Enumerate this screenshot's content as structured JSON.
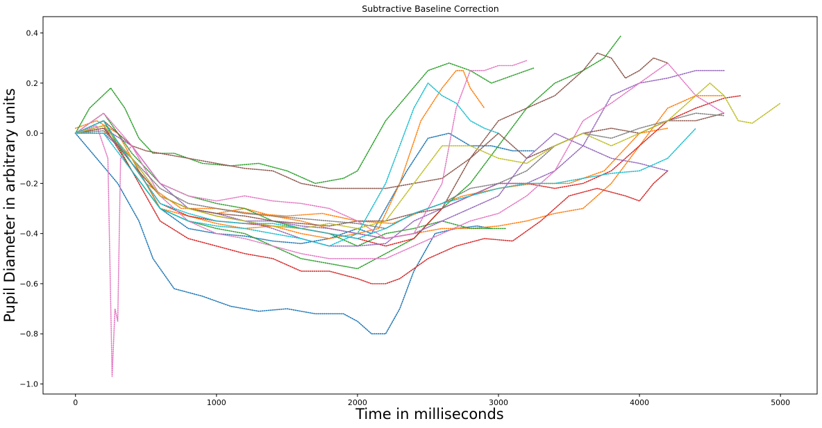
{
  "chart_data": {
    "type": "line",
    "title": "Subtractive Baseline Correction",
    "xlabel": "Time in milliseconds",
    "ylabel": "Pupil Diameter in arbitrary units",
    "xlim": [
      -230,
      5260
    ],
    "ylim": [
      -1.04,
      0.465
    ],
    "xticks": [
      0,
      1000,
      2000,
      3000,
      4000,
      5000
    ],
    "yticks": [
      -1.0,
      -0.8,
      -0.6,
      -0.4,
      -0.2,
      0.0,
      0.2,
      0.4
    ],
    "xtick_labels": [
      "0",
      "1000",
      "2000",
      "3000",
      "4000",
      "5000"
    ],
    "ytick_labels": [
      "−1.0",
      "−0.8",
      "−0.6",
      "−0.4",
      "−0.2",
      "0.0",
      "0.2",
      "0.4"
    ],
    "grid": false,
    "legend": "none",
    "line_style": "dotted",
    "series": [
      {
        "color": "#1f77b4",
        "x": [
          0,
          150,
          300,
          450,
          550,
          700,
          900,
          1100,
          1300,
          1500,
          1700,
          1900,
          2000,
          2100,
          2200,
          2300,
          2400,
          2550,
          2700,
          2850,
          2950
        ],
        "y": [
          0,
          -0.1,
          -0.2,
          -0.35,
          -0.5,
          -0.62,
          -0.65,
          -0.69,
          -0.71,
          -0.7,
          -0.72,
          -0.72,
          -0.75,
          -0.8,
          -0.8,
          -0.7,
          -0.55,
          -0.4,
          -0.38,
          -0.37,
          -0.38
        ]
      },
      {
        "color": "#1f77b4",
        "x": [
          0,
          200,
          400,
          600,
          800,
          1000,
          1200,
          1400,
          1600,
          1800,
          2000,
          2100,
          2200,
          2350,
          2500,
          2650,
          2800,
          2950,
          3100,
          3250
        ],
        "y": [
          0,
          0.03,
          -0.1,
          -0.3,
          -0.38,
          -0.4,
          -0.41,
          -0.43,
          -0.44,
          -0.42,
          -0.38,
          -0.4,
          -0.3,
          -0.15,
          -0.02,
          0.0,
          -0.05,
          -0.05,
          -0.07,
          -0.07
        ]
      },
      {
        "color": "#ff7f0e",
        "x": [
          0,
          150,
          300,
          450,
          600,
          800,
          1000,
          1200,
          1400,
          1600,
          1800,
          2000,
          2150,
          2300,
          2450,
          2600,
          2700,
          2750,
          2800,
          2900
        ],
        "y": [
          0.02,
          0.05,
          0.0,
          -0.15,
          -0.3,
          -0.33,
          -0.36,
          -0.38,
          -0.37,
          -0.4,
          -0.42,
          -0.4,
          -0.38,
          -0.2,
          0.05,
          0.18,
          0.25,
          0.25,
          0.18,
          0.1
        ]
      },
      {
        "color": "#ff7f0e",
        "x": [
          0,
          200,
          400,
          600,
          800,
          1000,
          1200,
          1400,
          1600,
          1800,
          2000,
          2200,
          2400,
          2600,
          2800,
          3000,
          3200,
          3400,
          3600,
          3800,
          4000,
          4200,
          4400,
          4600
        ],
        "y": [
          0,
          0.02,
          -0.12,
          -0.25,
          -0.3,
          -0.32,
          -0.3,
          -0.33,
          -0.35,
          -0.38,
          -0.4,
          -0.42,
          -0.4,
          -0.38,
          -0.38,
          -0.37,
          -0.35,
          -0.32,
          -0.3,
          -0.2,
          -0.05,
          0.1,
          0.15,
          0.15
        ]
      },
      {
        "color": "#ff7f0e",
        "x": [
          0,
          250,
          500,
          750,
          1000,
          1250,
          1500,
          1750,
          2000,
          2250,
          2500,
          2750,
          3000,
          3250,
          3500,
          3750,
          4000,
          4200
        ],
        "y": [
          0,
          0.0,
          -0.2,
          -0.3,
          -0.3,
          -0.32,
          -0.33,
          -0.32,
          -0.35,
          -0.36,
          -0.3,
          -0.25,
          -0.22,
          -0.2,
          -0.2,
          -0.15,
          0.0,
          0.02
        ]
      },
      {
        "color": "#2ca02c",
        "x": [
          0,
          100,
          250,
          350,
          450,
          550,
          700,
          900,
          1100,
          1300,
          1500,
          1700,
          1900,
          2000,
          2100,
          2200,
          2350,
          2500,
          2650,
          2800,
          2950,
          3100,
          3250
        ],
        "y": [
          0,
          0.1,
          0.18,
          0.1,
          -0.02,
          -0.08,
          -0.08,
          -0.12,
          -0.13,
          -0.12,
          -0.15,
          -0.2,
          -0.18,
          -0.15,
          -0.05,
          0.05,
          0.15,
          0.25,
          0.28,
          0.25,
          0.2,
          0.23,
          0.26
        ]
      },
      {
        "color": "#2ca02c",
        "x": [
          0,
          200,
          400,
          600,
          800,
          1000,
          1200,
          1400,
          1600,
          1800,
          2000,
          2200,
          2400,
          2600,
          2800,
          3000,
          3200,
          3400,
          3600,
          3750,
          3870
        ],
        "y": [
          0,
          0.05,
          -0.15,
          -0.3,
          -0.35,
          -0.38,
          -0.4,
          -0.45,
          -0.5,
          -0.52,
          -0.54,
          -0.48,
          -0.42,
          -0.3,
          -0.2,
          -0.05,
          0.1,
          0.2,
          0.25,
          0.3,
          0.39
        ]
      },
      {
        "color": "#2ca02c",
        "x": [
          0,
          200,
          400,
          600,
          800,
          1000,
          1200,
          1400,
          1600,
          1800,
          2000,
          2200,
          2400,
          2600,
          2800,
          3000,
          3050
        ],
        "y": [
          0,
          0.08,
          -0.08,
          -0.2,
          -0.25,
          -0.28,
          -0.3,
          -0.35,
          -0.38,
          -0.4,
          -0.45,
          -0.4,
          -0.38,
          -0.35,
          -0.38,
          -0.38,
          -0.38
        ]
      },
      {
        "color": "#d62728",
        "x": [
          0,
          200,
          400,
          600,
          800,
          1000,
          1200,
          1400,
          1600,
          1800,
          2000,
          2100,
          2200,
          2300,
          2500,
          2700,
          2900,
          3100,
          3300,
          3500,
          3700,
          3900,
          4000,
          4100,
          4200
        ],
        "y": [
          0,
          0.03,
          -0.15,
          -0.35,
          -0.42,
          -0.45,
          -0.48,
          -0.5,
          -0.55,
          -0.55,
          -0.58,
          -0.6,
          -0.6,
          -0.58,
          -0.5,
          -0.45,
          -0.42,
          -0.43,
          -0.35,
          -0.25,
          -0.22,
          -0.25,
          -0.27,
          -0.2,
          -0.15
        ]
      },
      {
        "color": "#d62728",
        "x": [
          0,
          200,
          400,
          600,
          800,
          1000,
          1200,
          1400,
          1600,
          1800,
          2000,
          2200,
          2400,
          2600,
          2800,
          3000,
          3200,
          3400,
          3600,
          3800,
          4000,
          4200,
          4400,
          4600,
          4720
        ],
        "y": [
          0,
          0.05,
          -0.12,
          -0.28,
          -0.33,
          -0.35,
          -0.36,
          -0.37,
          -0.38,
          -0.4,
          -0.42,
          -0.45,
          -0.42,
          -0.3,
          -0.25,
          -0.2,
          -0.2,
          -0.22,
          -0.2,
          -0.15,
          -0.05,
          0.05,
          0.1,
          0.14,
          0.15
        ]
      },
      {
        "color": "#9467bd",
        "x": [
          0,
          200,
          400,
          600,
          800,
          1000,
          1200,
          1400,
          1600,
          1800,
          2000,
          2200,
          2400,
          2600,
          2800,
          3000,
          3200,
          3400,
          3600,
          3800,
          4000,
          4200,
          4400,
          4600
        ],
        "y": [
          0,
          0.0,
          -0.1,
          -0.25,
          -0.3,
          -0.32,
          -0.35,
          -0.38,
          -0.42,
          -0.45,
          -0.45,
          -0.44,
          -0.35,
          -0.3,
          -0.25,
          -0.2,
          -0.2,
          -0.15,
          -0.05,
          0.15,
          0.2,
          0.22,
          0.25,
          0.25
        ]
      },
      {
        "color": "#9467bd",
        "x": [
          0,
          200,
          400,
          600,
          800,
          1000,
          1200,
          1400,
          1600,
          1800,
          2000,
          2200,
          2400,
          2600,
          2800,
          3000,
          3200,
          3400,
          3600,
          3800,
          4000,
          4200
        ],
        "y": [
          0,
          0.02,
          -0.05,
          -0.2,
          -0.3,
          -0.33,
          -0.35,
          -0.35,
          -0.37,
          -0.38,
          -0.4,
          -0.42,
          -0.4,
          -0.35,
          -0.3,
          -0.25,
          -0.1,
          0.0,
          -0.05,
          -0.1,
          -0.12,
          -0.15
        ]
      },
      {
        "color": "#8c564b",
        "x": [
          0,
          200,
          400,
          500,
          600,
          800,
          1000,
          1200,
          1400,
          1600,
          1800,
          2000,
          2200,
          2400,
          2600,
          2800,
          3000,
          3200,
          3400,
          3600,
          3700,
          3800,
          3900,
          4000,
          4100,
          4200
        ],
        "y": [
          0,
          0.05,
          -0.05,
          -0.07,
          -0.08,
          -0.1,
          -0.12,
          -0.14,
          -0.15,
          -0.2,
          -0.22,
          -0.22,
          -0.22,
          -0.2,
          -0.18,
          -0.1,
          0.05,
          0.1,
          0.15,
          0.25,
          0.32,
          0.3,
          0.22,
          0.25,
          0.3,
          0.28
        ]
      },
      {
        "color": "#8c564b",
        "x": [
          0,
          200,
          400,
          600,
          800,
          1000,
          1200,
          1400,
          1600,
          1800,
          2000,
          2200,
          2400,
          2600,
          2800,
          3000,
          3200,
          3400,
          3600,
          3800,
          4000,
          4200,
          4400,
          4600
        ],
        "y": [
          0,
          0.02,
          -0.12,
          -0.25,
          -0.3,
          -0.32,
          -0.33,
          -0.35,
          -0.36,
          -0.37,
          -0.35,
          -0.35,
          -0.32,
          -0.3,
          -0.1,
          0.0,
          -0.1,
          -0.05,
          0.0,
          0.02,
          0.0,
          0.05,
          0.05,
          0.08
        ]
      },
      {
        "color": "#e377c2",
        "x": [
          0,
          150,
          230,
          260,
          280,
          300,
          320,
          400,
          600,
          800,
          1000,
          1200,
          1400,
          1600,
          1800,
          2000,
          2200,
          2400,
          2600,
          2700,
          2800,
          2900,
          3000,
          3100,
          3200
        ],
        "y": [
          0,
          0.03,
          -0.1,
          -0.97,
          -0.7,
          -0.75,
          -0.1,
          -0.05,
          -0.2,
          -0.25,
          -0.27,
          -0.25,
          -0.27,
          -0.28,
          -0.3,
          -0.35,
          -0.42,
          -0.4,
          -0.2,
          0.1,
          0.25,
          0.25,
          0.27,
          0.27,
          0.29
        ]
      },
      {
        "color": "#e377c2",
        "x": [
          0,
          200,
          400,
          600,
          800,
          1000,
          1200,
          1400,
          1600,
          1800,
          2000,
          2200,
          2400,
          2600,
          2800,
          3000,
          3200,
          3400,
          3600,
          3800,
          4000,
          4200,
          4400,
          4600
        ],
        "y": [
          0,
          0.08,
          -0.05,
          -0.25,
          -0.35,
          -0.4,
          -0.42,
          -0.45,
          -0.48,
          -0.5,
          -0.5,
          -0.5,
          -0.45,
          -0.4,
          -0.35,
          -0.32,
          -0.25,
          -0.15,
          0.05,
          0.12,
          0.2,
          0.28,
          0.15,
          0.08
        ]
      },
      {
        "color": "#7f7f7f",
        "x": [
          0,
          200,
          400,
          600,
          800,
          1000,
          1200,
          1400,
          1600,
          1800,
          2000,
          2200,
          2400,
          2600,
          2800,
          3000,
          3200,
          3400,
          3600,
          3800,
          4000,
          4200,
          4400,
          4600
        ],
        "y": [
          0,
          0.01,
          -0.1,
          -0.22,
          -0.28,
          -0.3,
          -0.32,
          -0.33,
          -0.34,
          -0.35,
          -0.36,
          -0.38,
          -0.32,
          -0.28,
          -0.22,
          -0.2,
          -0.15,
          -0.05,
          0.0,
          -0.02,
          0.02,
          0.05,
          0.08,
          0.07
        ]
      },
      {
        "color": "#bcbd22",
        "x": [
          0,
          200,
          400,
          600,
          800,
          1000,
          1200,
          1400,
          1600,
          1800,
          2000,
          2200,
          2400,
          2600,
          2800,
          3000,
          3200,
          3400,
          3600,
          3800,
          4000,
          4200,
          4400,
          4500,
          4600,
          4700,
          4800,
          4900,
          5000
        ],
        "y": [
          0,
          0.03,
          -0.1,
          -0.25,
          -0.3,
          -0.33,
          -0.35,
          -0.37,
          -0.38,
          -0.36,
          -0.38,
          -0.35,
          -0.2,
          -0.05,
          -0.05,
          -0.1,
          -0.12,
          -0.05,
          0.0,
          -0.05,
          0.0,
          0.05,
          0.15,
          0.2,
          0.15,
          0.05,
          0.04,
          0.08,
          0.12
        ]
      },
      {
        "color": "#17becf",
        "x": [
          0,
          200,
          400,
          600,
          800,
          1000,
          1200,
          1400,
          1600,
          1800,
          2000,
          2200,
          2300,
          2400,
          2500,
          2600,
          2700,
          2800,
          2900,
          3000
        ],
        "y": [
          0,
          0.0,
          -0.15,
          -0.3,
          -0.35,
          -0.37,
          -0.38,
          -0.4,
          -0.42,
          -0.45,
          -0.4,
          -0.2,
          -0.05,
          0.1,
          0.2,
          0.15,
          0.12,
          0.05,
          0.02,
          0.0
        ]
      },
      {
        "color": "#17becf",
        "x": [
          0,
          200,
          400,
          600,
          800,
          1000,
          1200,
          1400,
          1600,
          1800,
          2000,
          2200,
          2400,
          2600,
          2800,
          3000,
          3200,
          3400,
          3600,
          3800,
          4000,
          4200,
          4400
        ],
        "y": [
          0,
          0.05,
          -0.12,
          -0.28,
          -0.32,
          -0.35,
          -0.36,
          -0.36,
          -0.38,
          -0.4,
          -0.42,
          -0.38,
          -0.32,
          -0.28,
          -0.25,
          -0.22,
          -0.2,
          -0.2,
          -0.18,
          -0.16,
          -0.15,
          -0.1,
          0.02
        ]
      }
    ]
  }
}
